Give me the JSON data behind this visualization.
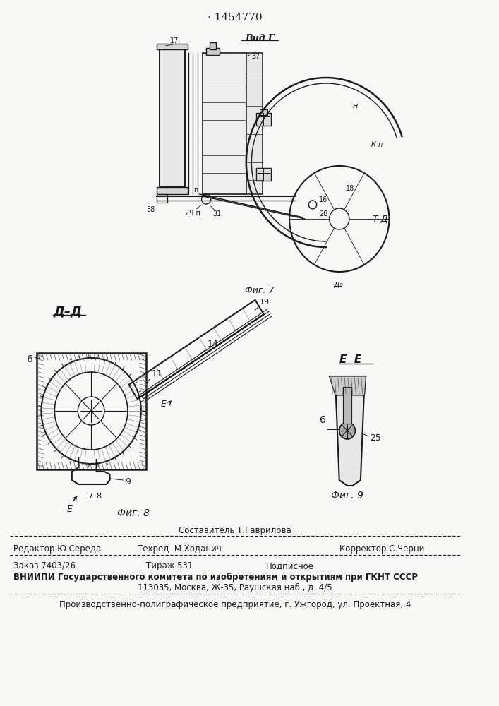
{
  "patent_number": "1454770",
  "fig_color": "#f8f8f6",
  "text_color": "#1a1a1a",
  "header_patent": "· 1454770",
  "fig7_label": "Фиг. 7",
  "fig7_view_label": "Вид Г",
  "fig8_label": "Фиг. 8",
  "fig8_section": "Д–Д",
  "fig9_label": "Фиг. 9",
  "fig9_section": "Е  Е",
  "footer_line1_left": "Редактор Ю.Середа",
  "footer_line1_center": "Техред  М.Ходанич",
  "footer_line1_right": "Корректор С.Черни",
  "footer_composer": "Составитель Т.Гаврилова",
  "footer_order": "Заказ 7403/26",
  "footer_print": "Тираж 531",
  "footer_subscription": "Подписное",
  "footer_vniigi_line1": "ВНИИПИ Государственного комитета по изобретениям и открытиям при ГКНТ СССР",
  "footer_vniigi_line2": "113035, Москва, Ж-35, Раушская наб., д. 4/5",
  "footer_production": "Производственно-полиграфическое предприятие, г. Ужгород, ул. Проектная, 4"
}
